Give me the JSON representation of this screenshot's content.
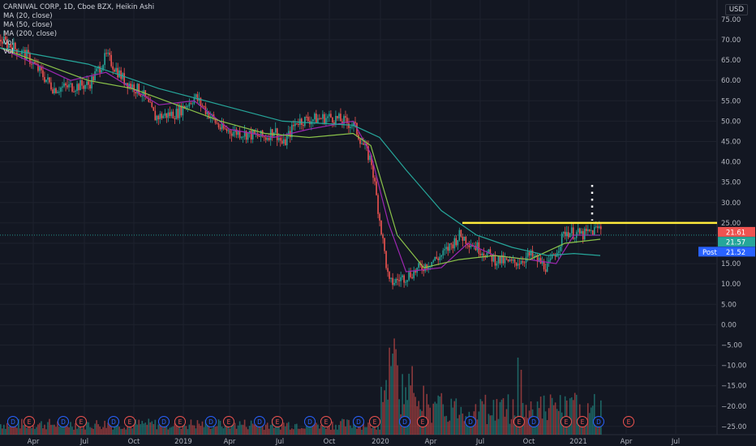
{
  "header": {
    "title": "CARNIVAL CORP, 1D, Cboe BZX, Heikin Ashi",
    "indicators": [
      "MA (20, close)",
      "MA (50, close)",
      "MA (200, close)",
      "Vol",
      "Vol"
    ],
    "currency": "USD"
  },
  "chart_data": {
    "type": "candlestick",
    "y_ticks": [
      "75.00",
      "70.00",
      "65.00",
      "60.00",
      "55.00",
      "50.00",
      "45.00",
      "40.00",
      "35.00",
      "30.00",
      "25.00",
      "20.00",
      "15.00",
      "10.00",
      "5.00",
      "0.00",
      "−5.00",
      "−10.00",
      "−15.00",
      "−20.00",
      "−25.00"
    ],
    "x_ticks": [
      "Apr",
      "Jul",
      "Oct",
      "2019",
      "Apr",
      "Jul",
      "Oct",
      "2020",
      "Apr",
      "Jul",
      "Oct",
      "2021",
      "Apr",
      "Jul"
    ],
    "ylim": [
      -25,
      76
    ],
    "price_labels": {
      "last": {
        "text": "21.61",
        "value": 21.61,
        "color": "#ef5350"
      },
      "ma": {
        "text": "21.57",
        "value": 21.57,
        "color": "#26a69a"
      },
      "post_tag": "Post",
      "post": {
        "text": "21.52",
        "value": 21.52,
        "color": "#2962ff"
      }
    },
    "price_path": [
      [
        0,
        70
      ],
      [
        0.06,
        66
      ],
      [
        0.12,
        58
      ],
      [
        0.2,
        59
      ],
      [
        0.24,
        66
      ],
      [
        0.28,
        60
      ],
      [
        0.32,
        57
      ],
      [
        0.35,
        51
      ],
      [
        0.4,
        52
      ],
      [
        0.44,
        56
      ],
      [
        0.5,
        48
      ],
      [
        0.6,
        46
      ],
      [
        0.62,
        48
      ],
      [
        0.64,
        44
      ],
      [
        0.67,
        50
      ],
      [
        0.75,
        51
      ],
      [
        0.8,
        49
      ],
      [
        0.84,
        40
      ],
      [
        0.88,
        10
      ],
      [
        0.92,
        12
      ],
      [
        1.0,
        17
      ],
      [
        1.04,
        22
      ],
      [
        1.12,
        16
      ],
      [
        1.16,
        15
      ],
      [
        1.2,
        17
      ],
      [
        1.24,
        14
      ],
      [
        1.28,
        23
      ],
      [
        1.32,
        22
      ],
      [
        1.36,
        24
      ]
    ],
    "ma20": [
      [
        0,
        68
      ],
      [
        0.08,
        64
      ],
      [
        0.16,
        60
      ],
      [
        0.24,
        62
      ],
      [
        0.3,
        58
      ],
      [
        0.36,
        54
      ],
      [
        0.44,
        55
      ],
      [
        0.52,
        48
      ],
      [
        0.62,
        46
      ],
      [
        0.7,
        48
      ],
      [
        0.8,
        50
      ],
      [
        0.84,
        42
      ],
      [
        0.88,
        25
      ],
      [
        0.92,
        13
      ],
      [
        1.0,
        14
      ],
      [
        1.06,
        20
      ],
      [
        1.12,
        17
      ],
      [
        1.2,
        16
      ],
      [
        1.26,
        15
      ],
      [
        1.3,
        22
      ],
      [
        1.36,
        22
      ]
    ],
    "ma50": [
      [
        0,
        68
      ],
      [
        0.1,
        64
      ],
      [
        0.2,
        60
      ],
      [
        0.3,
        58
      ],
      [
        0.4,
        54
      ],
      [
        0.5,
        50
      ],
      [
        0.6,
        47
      ],
      [
        0.7,
        46
      ],
      [
        0.8,
        47
      ],
      [
        0.84,
        44
      ],
      [
        0.9,
        22
      ],
      [
        0.96,
        14
      ],
      [
        1.04,
        16
      ],
      [
        1.12,
        17
      ],
      [
        1.2,
        16
      ],
      [
        1.28,
        20
      ],
      [
        1.36,
        21
      ]
    ],
    "ma200": [
      [
        0,
        68
      ],
      [
        0.2,
        64
      ],
      [
        0.36,
        58
      ],
      [
        0.5,
        54
      ],
      [
        0.64,
        50
      ],
      [
        0.8,
        49
      ],
      [
        0.86,
        46
      ],
      [
        0.92,
        38
      ],
      [
        1.0,
        28
      ],
      [
        1.08,
        22
      ],
      [
        1.16,
        19
      ],
      [
        1.24,
        17
      ],
      [
        1.3,
        17.5
      ],
      [
        1.36,
        17
      ]
    ],
    "resistance": {
      "value": 25,
      "color": "#ffeb3b"
    },
    "dashed_price_line": 22.0,
    "earnings_markers": [
      "D",
      "E",
      "D",
      "E",
      "D",
      "E",
      "D",
      "E",
      "D",
      "E",
      "D",
      "E",
      "D",
      "E",
      "D",
      "E",
      "D",
      "E",
      "D",
      "E",
      "D",
      "E",
      "E",
      "D",
      "E",
      "D",
      "E",
      "E",
      "E"
    ]
  }
}
